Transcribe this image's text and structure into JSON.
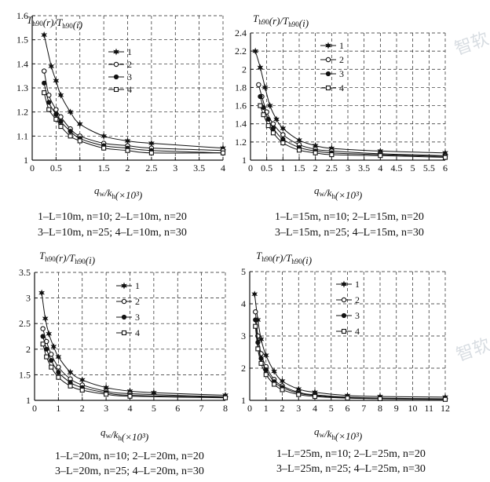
{
  "chart_data": [
    {
      "type": "line",
      "ylabel": "Th90(r)/Th90(i)",
      "xlabel": "qw/kh(×10³)",
      "xlim": [
        0,
        4
      ],
      "ylim": [
        1,
        1.6
      ],
      "xticks": [
        0,
        0.5,
        1,
        1.5,
        2,
        2.5,
        3,
        3.5,
        4
      ],
      "xtick_labels": [
        "0",
        "0.5",
        "1",
        "1.5",
        "2",
        "2.5",
        "3",
        "3.5",
        "4"
      ],
      "yticks": [
        1.0,
        1.1,
        1.2,
        1.3,
        1.4,
        1.5,
        1.6
      ],
      "ytick_labels": [
        "1",
        "1.1",
        "1.2",
        "1.3",
        "1.4",
        "1.5",
        "1.6"
      ],
      "grid": true,
      "legend_position": "top-right",
      "caption": [
        "1–L=10m, n=10; 2–L=10m, n=20",
        "3–L=10m, n=25; 4–L=10m, n=30"
      ],
      "series": [
        {
          "name": "1",
          "marker": "star",
          "x": [
            0.25,
            0.4,
            0.5,
            0.6,
            0.8,
            1,
            1.5,
            2,
            2.5,
            4
          ],
          "y": [
            1.52,
            1.39,
            1.33,
            1.27,
            1.2,
            1.15,
            1.1,
            1.08,
            1.07,
            1.05
          ]
        },
        {
          "name": "2",
          "marker": "circle",
          "x": [
            0.25,
            0.35,
            0.5,
            0.6,
            0.8,
            1,
            1.5,
            2,
            2.5,
            4
          ],
          "y": [
            1.37,
            1.27,
            1.21,
            1.18,
            1.13,
            1.1,
            1.07,
            1.06,
            1.05,
            1.04
          ]
        },
        {
          "name": "3",
          "marker": "dot",
          "x": [
            0.25,
            0.35,
            0.5,
            0.6,
            0.8,
            1,
            1.5,
            2,
            2.5,
            4
          ],
          "y": [
            1.32,
            1.24,
            1.19,
            1.16,
            1.12,
            1.09,
            1.06,
            1.05,
            1.04,
            1.03
          ]
        },
        {
          "name": "4",
          "marker": "square",
          "x": [
            0.25,
            0.35,
            0.5,
            0.6,
            0.8,
            1,
            1.5,
            2,
            2.5,
            4
          ],
          "y": [
            1.28,
            1.21,
            1.17,
            1.14,
            1.1,
            1.08,
            1.05,
            1.04,
            1.03,
            1.03
          ]
        }
      ]
    },
    {
      "type": "line",
      "ylabel": "Th90(r)/Th90(i)",
      "xlabel": "qw/kh(×10³)",
      "xlim": [
        0,
        6
      ],
      "ylim": [
        1,
        2.4
      ],
      "xticks": [
        0,
        0.5,
        1,
        1.5,
        2,
        2.5,
        3,
        3.5,
        4,
        4.5,
        5,
        5.5,
        6
      ],
      "xtick_labels": [
        "0",
        "0.5",
        "1",
        "1.5",
        "2",
        "2.5",
        "3",
        "3.5",
        "4",
        "4.5",
        "5",
        "5.5",
        "6"
      ],
      "yticks": [
        1.0,
        1.2,
        1.4,
        1.6,
        1.8,
        2.0,
        2.2,
        2.4
      ],
      "ytick_labels": [
        "1",
        "1.2",
        "1.4",
        "1.6",
        "1.8",
        "2",
        "2.2",
        "2.4"
      ],
      "grid": true,
      "legend_position": "top-right",
      "caption": [
        "1–L=15m, n=10; 2–L=15m, n=20",
        "3–L=15m, n=25; 4–L=15m, n=30"
      ],
      "series": [
        {
          "name": "1",
          "marker": "star",
          "x": [
            0.15,
            0.3,
            0.45,
            0.6,
            0.8,
            1,
            1.5,
            2,
            2.5,
            4,
            6
          ],
          "y": [
            2.2,
            2.02,
            1.8,
            1.6,
            1.45,
            1.35,
            1.22,
            1.16,
            1.13,
            1.1,
            1.08
          ]
        },
        {
          "name": "2",
          "marker": "circle",
          "x": [
            0.25,
            0.35,
            0.5,
            0.7,
            1,
            1.5,
            2,
            2.5,
            4,
            6
          ],
          "y": [
            1.83,
            1.7,
            1.53,
            1.4,
            1.28,
            1.17,
            1.12,
            1.1,
            1.07,
            1.05
          ]
        },
        {
          "name": "3",
          "marker": "dot",
          "x": [
            0.3,
            0.4,
            0.55,
            0.7,
            1,
            1.5,
            2,
            2.5,
            4,
            6
          ],
          "y": [
            1.7,
            1.58,
            1.45,
            1.35,
            1.23,
            1.14,
            1.1,
            1.08,
            1.06,
            1.04
          ]
        },
        {
          "name": "4",
          "marker": "square",
          "x": [
            0.3,
            0.4,
            0.55,
            0.7,
            1,
            1.5,
            2,
            2.5,
            4,
            6
          ],
          "y": [
            1.6,
            1.5,
            1.38,
            1.3,
            1.19,
            1.11,
            1.08,
            1.06,
            1.05,
            1.03
          ]
        }
      ]
    },
    {
      "type": "line",
      "ylabel": "Th90(r)/Th90(i)",
      "xlabel": "qw/kh(×10³)",
      "xlim": [
        0,
        8
      ],
      "ylim": [
        1,
        3.5
      ],
      "xticks": [
        0,
        1,
        2,
        3,
        4,
        5,
        6,
        7,
        8
      ],
      "xtick_labels": [
        "0",
        "1",
        "2",
        "3",
        "4",
        "5",
        "6",
        "7",
        "8"
      ],
      "yticks": [
        1.0,
        1.5,
        2.0,
        2.5,
        3.0,
        3.5
      ],
      "ytick_labels": [
        "1",
        "1.5",
        "2",
        "2.5",
        "3",
        "3.5"
      ],
      "grid": true,
      "legend_position": "top-right",
      "caption": [
        "1–L=20m, n=10; 2–L=20m, n=20",
        "3–L=20m, n=25; 4–L=20m, n=30"
      ],
      "series": [
        {
          "name": "1",
          "marker": "star",
          "x": [
            0.3,
            0.45,
            0.6,
            0.8,
            1,
            1.5,
            2,
            3,
            4,
            5,
            8
          ],
          "y": [
            3.1,
            2.6,
            2.3,
            2.05,
            1.85,
            1.55,
            1.4,
            1.25,
            1.18,
            1.15,
            1.1
          ]
        },
        {
          "name": "2",
          "marker": "circle",
          "x": [
            0.35,
            0.5,
            0.7,
            1,
            1.5,
            2,
            3,
            4,
            8
          ],
          "y": [
            2.4,
            2.15,
            1.9,
            1.65,
            1.42,
            1.3,
            1.18,
            1.13,
            1.07
          ]
        },
        {
          "name": "3",
          "marker": "dot",
          "x": [
            0.35,
            0.5,
            0.7,
            1,
            1.5,
            2,
            3,
            4,
            8
          ],
          "y": [
            2.25,
            2.0,
            1.78,
            1.55,
            1.35,
            1.25,
            1.15,
            1.1,
            1.06
          ]
        },
        {
          "name": "4",
          "marker": "square",
          "x": [
            0.35,
            0.5,
            0.7,
            1,
            1.5,
            2,
            3,
            4,
            8
          ],
          "y": [
            2.1,
            1.85,
            1.65,
            1.45,
            1.28,
            1.2,
            1.12,
            1.08,
            1.05
          ]
        }
      ]
    },
    {
      "type": "line",
      "ylabel": "Th90(r)/Th90(i)",
      "xlabel": "qw/kh(×10³)",
      "xlim": [
        0,
        12
      ],
      "ylim": [
        1,
        5
      ],
      "xticks": [
        0,
        1,
        2,
        3,
        4,
        5,
        6,
        7,
        8,
        9,
        10,
        11,
        12
      ],
      "xtick_labels": [
        "0",
        "1",
        "2",
        "3",
        "4",
        "5",
        "6",
        "7",
        "8",
        "9",
        "10",
        "11",
        "12"
      ],
      "yticks": [
        1,
        2,
        3,
        4,
        5
      ],
      "ytick_labels": [
        "1",
        "2",
        "3",
        "4",
        "5"
      ],
      "grid": true,
      "legend_position": "top-right",
      "caption": [
        "1–L=25m, n=10; 2–L=25m, n=20",
        "3–L=25m, n=25; 4–L=25m, n=30"
      ],
      "series": [
        {
          "name": "1",
          "marker": "star",
          "x": [
            0.3,
            0.5,
            0.7,
            1,
            1.5,
            2,
            3,
            4,
            6,
            8,
            12
          ],
          "y": [
            4.3,
            3.5,
            2.9,
            2.4,
            1.9,
            1.6,
            1.35,
            1.25,
            1.15,
            1.12,
            1.1
          ]
        },
        {
          "name": "2",
          "marker": "circle",
          "x": [
            0.35,
            0.5,
            0.7,
            1,
            1.5,
            2,
            3,
            4,
            6,
            8,
            12
          ],
          "y": [
            3.75,
            3.0,
            2.45,
            2.05,
            1.65,
            1.45,
            1.25,
            1.17,
            1.1,
            1.07,
            1.05
          ]
        },
        {
          "name": "3",
          "marker": "dot",
          "x": [
            0.35,
            0.5,
            0.7,
            1,
            1.5,
            2,
            3,
            4,
            6,
            8,
            12
          ],
          "y": [
            3.5,
            2.8,
            2.3,
            1.95,
            1.58,
            1.4,
            1.22,
            1.15,
            1.08,
            1.06,
            1.04
          ]
        },
        {
          "name": "4",
          "marker": "square",
          "x": [
            0.35,
            0.5,
            0.7,
            1,
            1.5,
            2,
            3,
            4,
            6,
            8,
            12
          ],
          "y": [
            3.3,
            2.6,
            2.15,
            1.8,
            1.5,
            1.33,
            1.18,
            1.12,
            1.07,
            1.05,
            1.03
          ]
        }
      ]
    }
  ],
  "watermark_text": "智软",
  "colors": {
    "ink": "#111111",
    "grid_dash": "#222222",
    "background": "#ffffff"
  }
}
